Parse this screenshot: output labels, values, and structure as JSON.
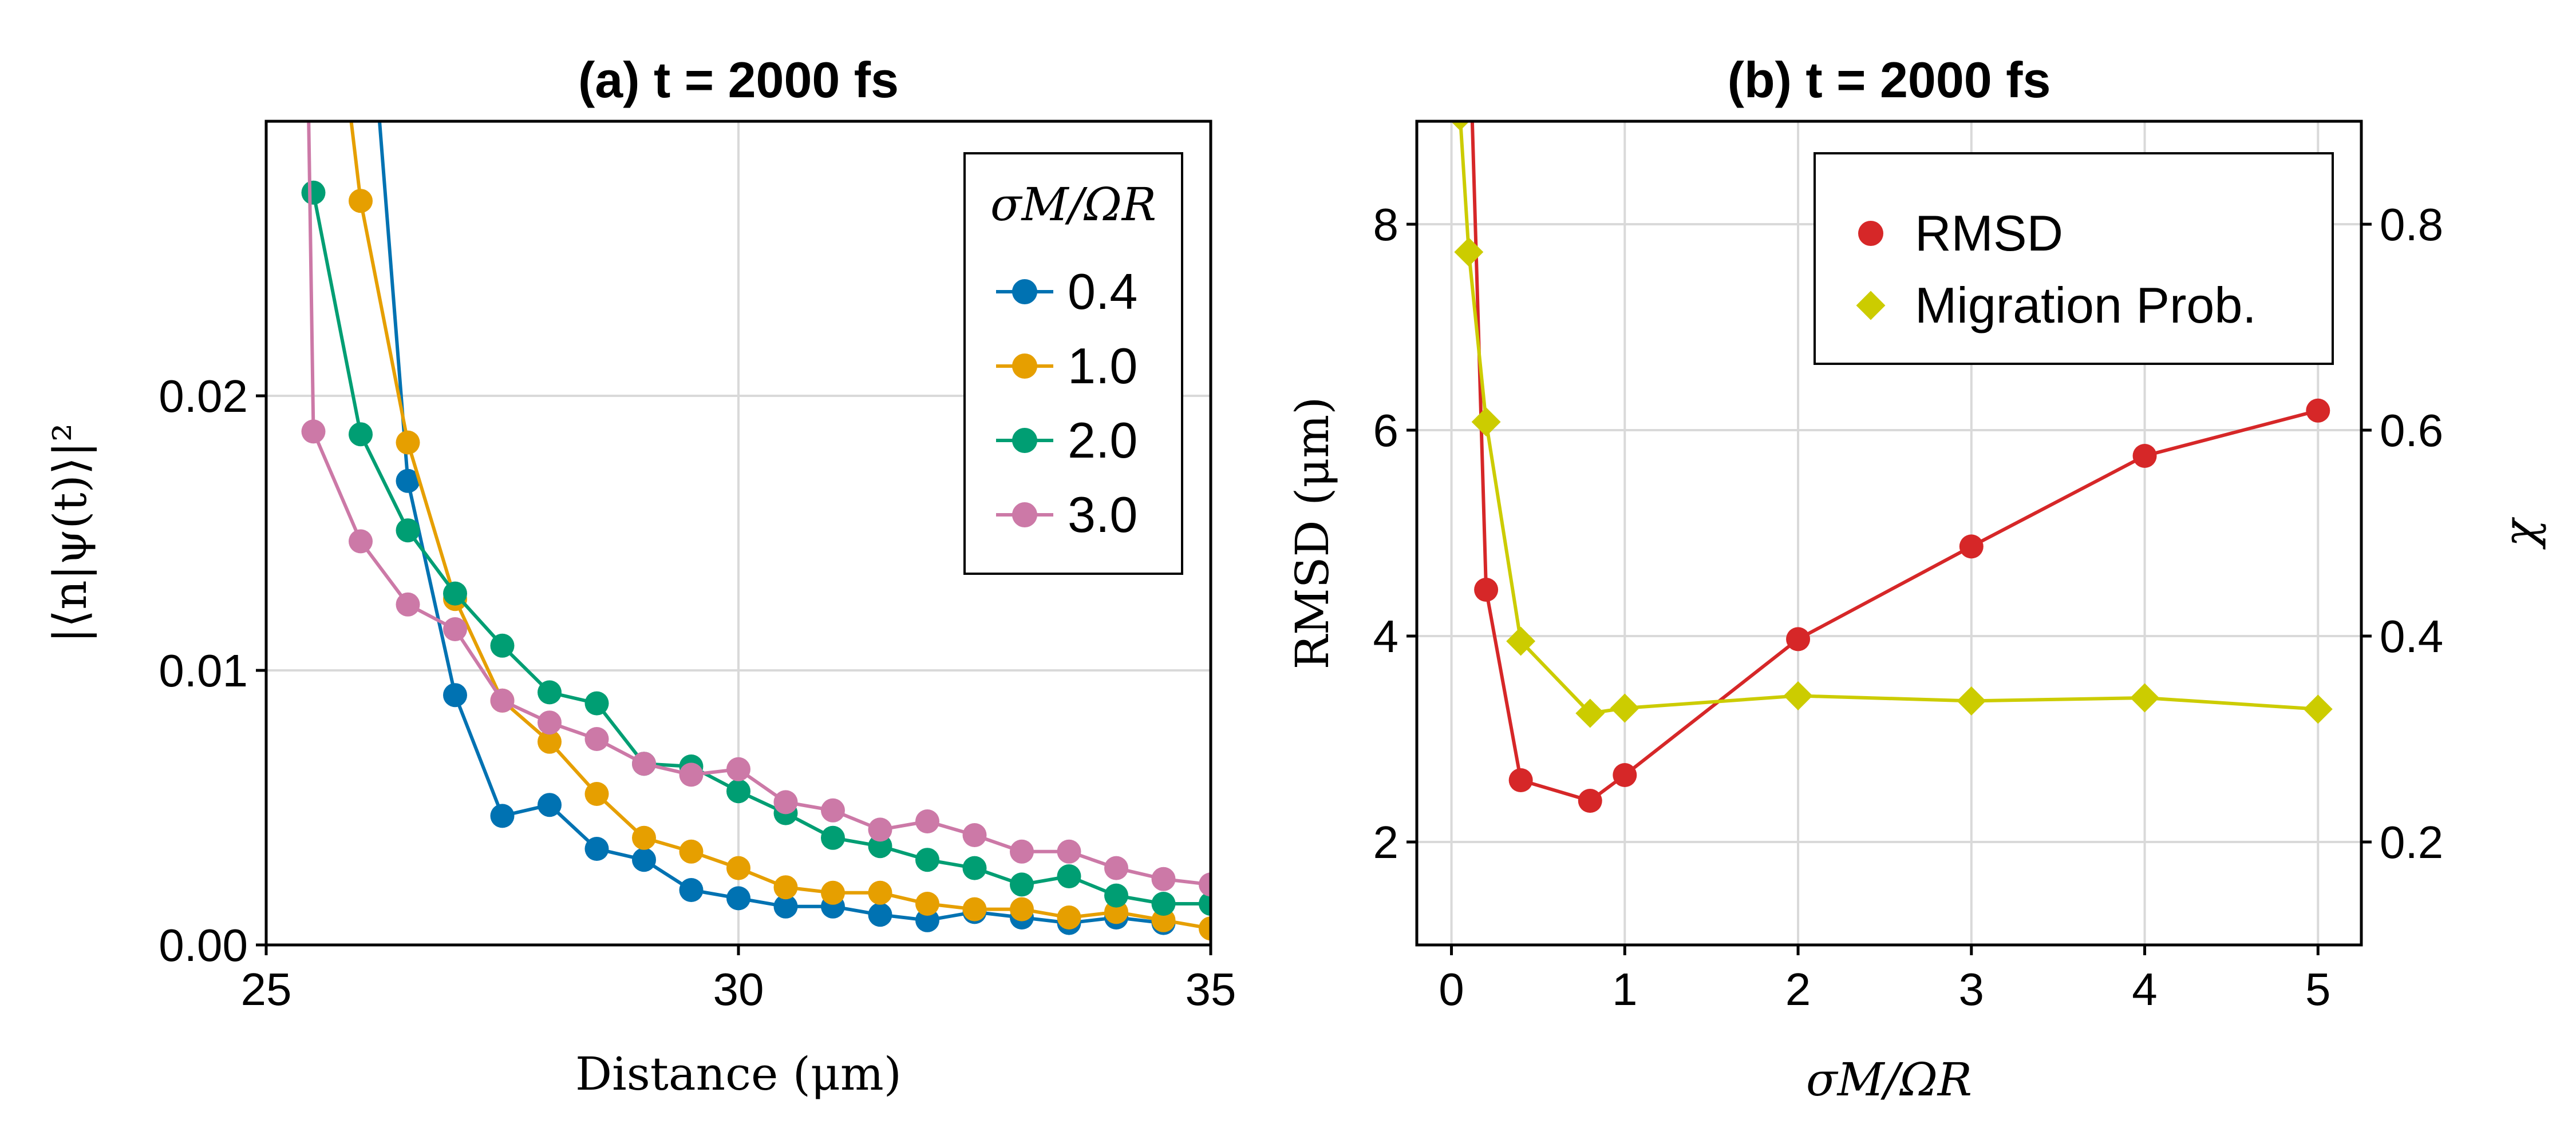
{
  "chart_data": [
    {
      "type": "line",
      "title": "(a) t = 2000 fs",
      "xlabel": "Distance (μm)",
      "ylabel": "|⟨n|ψ(t)⟩|²",
      "xlim": [
        25,
        35
      ],
      "ylim": [
        0,
        0.03
      ],
      "xticks": [
        25,
        30,
        35
      ],
      "yticks": [
        0.0,
        0.01,
        0.02
      ],
      "xtick_labels": [
        "25",
        "30",
        "35"
      ],
      "ytick_labels": [
        "0.00",
        "0.01",
        "0.02"
      ],
      "grid": true,
      "legend_title": "σM/ΩR",
      "legend_position": "top-right",
      "series": [
        {
          "name": "0.4",
          "color": "#0072b2",
          "x": [
            26.5,
            27.0,
            27.5,
            28.0,
            28.5,
            29.0,
            29.5,
            30.0,
            30.5,
            31.0,
            31.5,
            32.0,
            32.5,
            33.0,
            33.5,
            34.0,
            34.5
          ],
          "y": [
            0.0169,
            0.0091,
            0.0047,
            0.0051,
            0.0035,
            0.0031,
            0.002,
            0.0017,
            0.0014,
            0.0014,
            0.0011,
            0.0009,
            0.0012,
            0.001,
            0.0008,
            0.001,
            0.0008
          ],
          "lead_in": {
            "x": [
              26.2,
              26.5
            ],
            "y": [
              0.03,
              0.0169
            ]
          }
        },
        {
          "name": "1.0",
          "color": "#e69f00",
          "x": [
            26.0,
            26.5,
            27.0,
            27.5,
            28.0,
            28.5,
            29.0,
            29.5,
            30.0,
            30.5,
            31.0,
            31.5,
            32.0,
            32.5,
            33.0,
            33.5,
            34.0,
            34.5,
            35.0
          ],
          "y": [
            0.0271,
            0.0183,
            0.0126,
            0.0089,
            0.0074,
            0.0055,
            0.0039,
            0.0034,
            0.0028,
            0.0021,
            0.0019,
            0.0019,
            0.0015,
            0.0013,
            0.0013,
            0.001,
            0.0012,
            0.0009,
            0.0006
          ],
          "lead_in": {
            "x": [
              25.9,
              26.0
            ],
            "y": [
              0.03,
              0.0271
            ]
          }
        },
        {
          "name": "2.0",
          "color": "#009e73",
          "x": [
            25.5,
            26.0,
            26.5,
            27.0,
            27.5,
            28.0,
            28.5,
            29.0,
            29.5,
            30.0,
            30.5,
            31.0,
            31.5,
            32.0,
            32.5,
            33.0,
            33.5,
            34.0,
            34.5,
            35.0
          ],
          "y": [
            0.0274,
            0.0186,
            0.0151,
            0.0128,
            0.0109,
            0.0092,
            0.0088,
            0.0066,
            0.0065,
            0.0056,
            0.0048,
            0.0039,
            0.0036,
            0.0031,
            0.0028,
            0.0022,
            0.0025,
            0.0018,
            0.0015,
            0.0015
          ]
        },
        {
          "name": "3.0",
          "color": "#cc79a7",
          "x": [
            25.5,
            26.0,
            26.5,
            27.0,
            27.5,
            28.0,
            28.5,
            29.0,
            29.5,
            30.0,
            30.5,
            31.0,
            31.5,
            32.0,
            32.5,
            33.0,
            33.5,
            34.0,
            34.5,
            35.0
          ],
          "y": [
            0.0187,
            0.0147,
            0.0124,
            0.0115,
            0.0089,
            0.0081,
            0.0075,
            0.0066,
            0.0062,
            0.0064,
            0.0052,
            0.0049,
            0.0042,
            0.0045,
            0.004,
            0.0034,
            0.0034,
            0.0028,
            0.0024,
            0.0022
          ],
          "lead_in": {
            "x": [
              25.45,
              25.5
            ],
            "y": [
              0.03,
              0.0187
            ]
          }
        }
      ]
    },
    {
      "type": "line",
      "title": "(b) t = 2000 fs",
      "xlabel": "σM/ΩR",
      "ylabel": "RMSD (μm)",
      "ylabel_right": "χ",
      "xlim": [
        -0.2,
        5.25
      ],
      "ylim": [
        1.0,
        9.0
      ],
      "ylim_right": [
        0.1,
        0.9
      ],
      "xticks": [
        0,
        1,
        2,
        3,
        4,
        5
      ],
      "yticks": [
        2,
        4,
        6,
        8
      ],
      "yticks_right": [
        0.2,
        0.4,
        0.6,
        0.8
      ],
      "xtick_labels": [
        "0",
        "1",
        "2",
        "3",
        "4",
        "5"
      ],
      "ytick_labels": [
        "2",
        "4",
        "6",
        "8"
      ],
      "ytick_labels_right": [
        "0.2",
        "0.4",
        "0.6",
        "0.8"
      ],
      "grid": true,
      "legend_position": "top-right",
      "series": [
        {
          "name": "RMSD",
          "color": "#d62728",
          "marker": "circle",
          "axis": "left",
          "x": [
            0.2,
            0.4,
            0.8,
            1.0,
            2.0,
            3.0,
            4.0,
            5.0
          ],
          "y": [
            4.45,
            2.6,
            2.4,
            2.65,
            3.97,
            4.87,
            5.75,
            6.19
          ],
          "lead_in": {
            "x": [
              0.12,
              0.2
            ],
            "y": [
              9.0,
              4.45
            ]
          }
        },
        {
          "name": "Migration Prob.",
          "color": "#cccc00",
          "marker": "diamond",
          "axis": "right",
          "x": [
            0.05,
            0.1,
            0.2,
            0.4,
            0.8,
            1.0,
            2.0,
            3.0,
            4.0,
            5.0
          ],
          "y": [
            0.905,
            0.773,
            0.608,
            0.395,
            0.325,
            0.33,
            0.342,
            0.337,
            0.34,
            0.329
          ]
        }
      ]
    }
  ]
}
